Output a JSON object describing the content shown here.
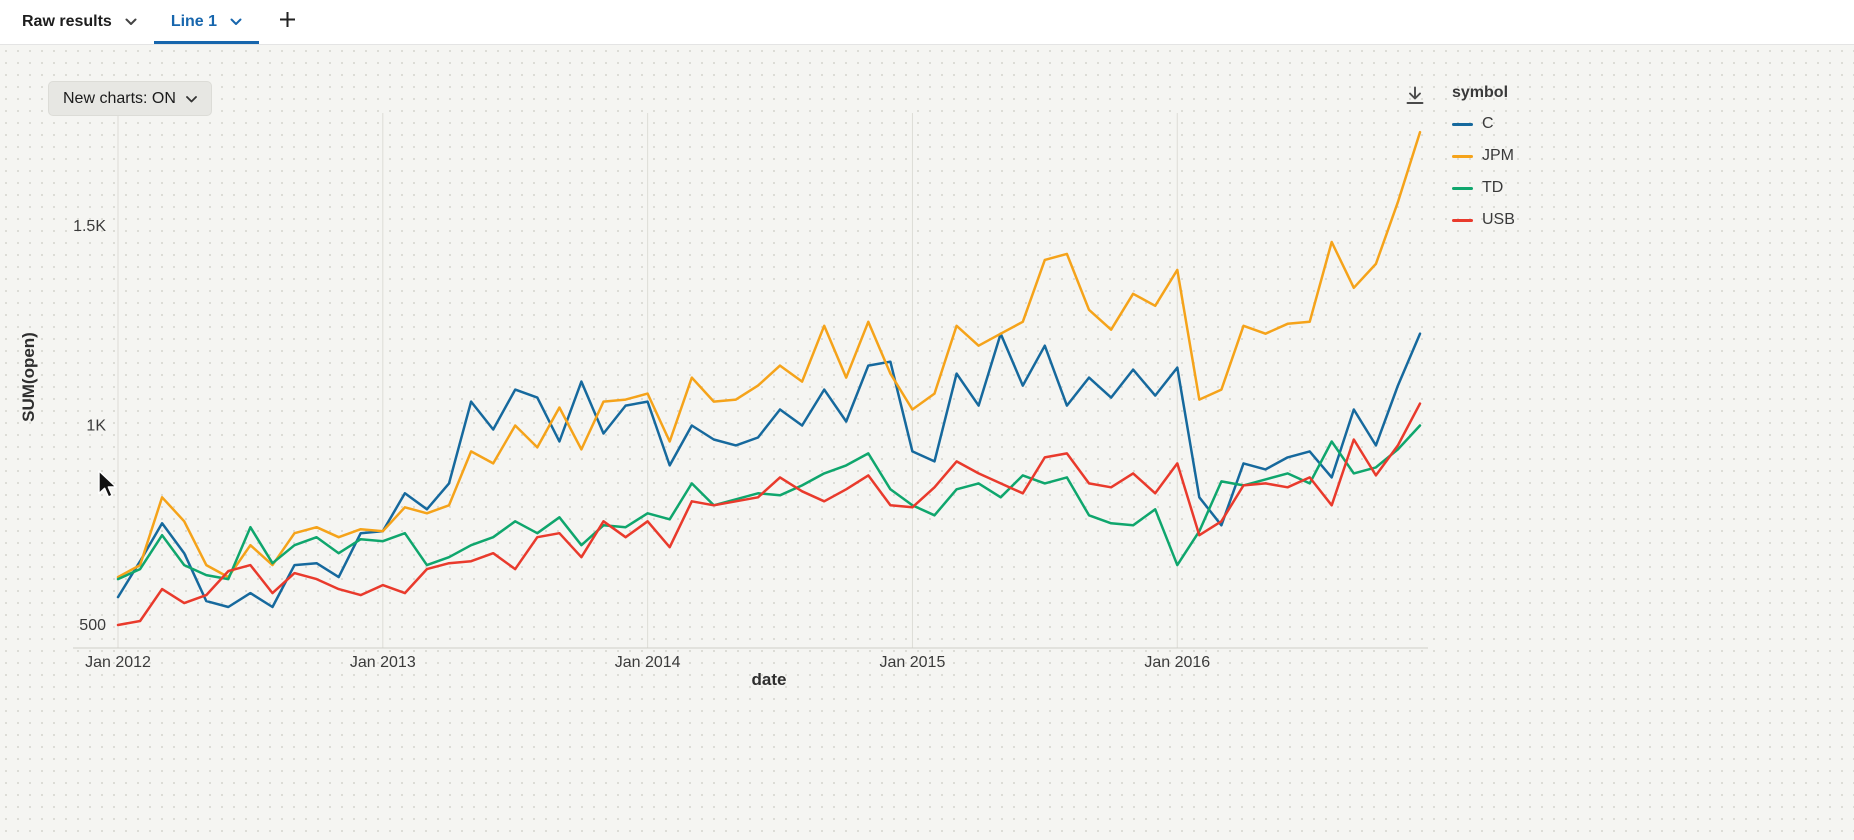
{
  "tabbar": {
    "tabs": [
      {
        "label": "Raw results",
        "active": false
      },
      {
        "label": "Line 1",
        "active": true
      }
    ],
    "add_tab_label": "+"
  },
  "toolbar": {
    "new_charts_label": "New charts: ON"
  },
  "icons": {
    "chevron_down": "chevron-down",
    "plus": "plus",
    "download": "download-arrow-to-tray",
    "cursor": "mouse-pointer-arrow"
  },
  "legend": {
    "title": "symbol",
    "items": [
      {
        "label": "C",
        "color": "#16699d"
      },
      {
        "label": "JPM",
        "color": "#f5a31a"
      },
      {
        "label": "TD",
        "color": "#0fa66d"
      },
      {
        "label": "USB",
        "color": "#e93a2c"
      }
    ]
  },
  "chart_data": {
    "type": "line",
    "title": "",
    "xlabel": "date",
    "ylabel": "SUM(open)",
    "grid": "vertical",
    "legend_position": "right",
    "ylim": [
      460,
      1800
    ],
    "x": [
      "Jan 2012",
      "Feb 2012",
      "Mar 2012",
      "Apr 2012",
      "May 2012",
      "Jun 2012",
      "Jul 2012",
      "Aug 2012",
      "Sep 2012",
      "Oct 2012",
      "Nov 2012",
      "Dec 2012",
      "Jan 2013",
      "Feb 2013",
      "Mar 2013",
      "Apr 2013",
      "May 2013",
      "Jun 2013",
      "Jul 2013",
      "Aug 2013",
      "Sep 2013",
      "Oct 2013",
      "Nov 2013",
      "Dec 2013",
      "Jan 2014",
      "Feb 2014",
      "Mar 2014",
      "Apr 2014",
      "May 2014",
      "Jun 2014",
      "Jul 2014",
      "Aug 2014",
      "Sep 2014",
      "Oct 2014",
      "Nov 2014",
      "Dec 2014",
      "Jan 2015",
      "Feb 2015",
      "Mar 2015",
      "Apr 2015",
      "May 2015",
      "Jun 2015",
      "Jul 2015",
      "Aug 2015",
      "Sep 2015",
      "Oct 2015",
      "Nov 2015",
      "Dec 2015",
      "Jan 2016",
      "Feb 2016",
      "Mar 2016",
      "Apr 2016",
      "May 2016",
      "Jun 2016",
      "Jul 2016",
      "Aug 2016",
      "Sep 2016",
      "Oct 2016",
      "Nov 2016",
      "Dec 2016"
    ],
    "x_tick_labels": [
      "Jan 2012",
      "Jan 2013",
      "Jan 2014",
      "Jan 2015",
      "Jan 2016"
    ],
    "x_tick_indices": [
      0,
      12,
      24,
      36,
      48
    ],
    "y_ticks": [
      {
        "value": 500,
        "label": "500"
      },
      {
        "value": 1000,
        "label": "1K"
      },
      {
        "value": 1500,
        "label": "1.5K"
      }
    ],
    "series": [
      {
        "name": "C",
        "color": "#16699d",
        "values": [
          570,
          660,
          755,
          680,
          560,
          545,
          580,
          545,
          650,
          655,
          620,
          730,
          735,
          830,
          790,
          855,
          1060,
          990,
          1090,
          1070,
          960,
          1110,
          980,
          1050,
          1060,
          900,
          1000,
          965,
          950,
          970,
          1040,
          1000,
          1090,
          1010,
          1150,
          1160,
          935,
          910,
          1130,
          1050,
          1230,
          1100,
          1200,
          1050,
          1120,
          1070,
          1140,
          1075,
          1145,
          820,
          750,
          905,
          890,
          920,
          935,
          870,
          1040,
          950,
          1100,
          1230
        ]
      },
      {
        "name": "JPM",
        "color": "#f5a31a",
        "values": [
          620,
          650,
          820,
          760,
          650,
          620,
          700,
          650,
          730,
          745,
          720,
          740,
          735,
          795,
          780,
          800,
          935,
          905,
          1000,
          945,
          1045,
          940,
          1060,
          1065,
          1080,
          960,
          1120,
          1060,
          1065,
          1100,
          1150,
          1110,
          1250,
          1120,
          1260,
          1130,
          1040,
          1080,
          1250,
          1200,
          1230,
          1260,
          1415,
          1430,
          1290,
          1240,
          1330,
          1300,
          1390,
          1065,
          1090,
          1250,
          1230,
          1255,
          1260,
          1460,
          1345,
          1405,
          1560,
          1735
        ]
      },
      {
        "name": "TD",
        "color": "#0fa66d",
        "values": [
          615,
          640,
          725,
          650,
          625,
          615,
          745,
          655,
          700,
          720,
          680,
          715,
          710,
          730,
          650,
          670,
          700,
          720,
          760,
          730,
          770,
          700,
          750,
          745,
          780,
          765,
          855,
          800,
          815,
          830,
          825,
          850,
          880,
          900,
          930,
          840,
          800,
          775,
          840,
          855,
          820,
          875,
          855,
          870,
          775,
          755,
          750,
          790,
          650,
          735,
          860,
          850,
          865,
          880,
          855,
          960,
          880,
          895,
          940,
          1000
        ]
      },
      {
        "name": "USB",
        "color": "#e93a2c",
        "values": [
          500,
          510,
          590,
          555,
          575,
          635,
          650,
          580,
          630,
          615,
          590,
          575,
          600,
          580,
          640,
          655,
          660,
          680,
          640,
          720,
          730,
          670,
          760,
          720,
          760,
          695,
          810,
          800,
          810,
          820,
          870,
          835,
          810,
          840,
          875,
          800,
          795,
          845,
          910,
          880,
          855,
          830,
          920,
          930,
          855,
          845,
          880,
          830,
          905,
          725,
          760,
          850,
          855,
          845,
          870,
          800,
          965,
          875,
          950,
          1055
        ]
      }
    ]
  }
}
